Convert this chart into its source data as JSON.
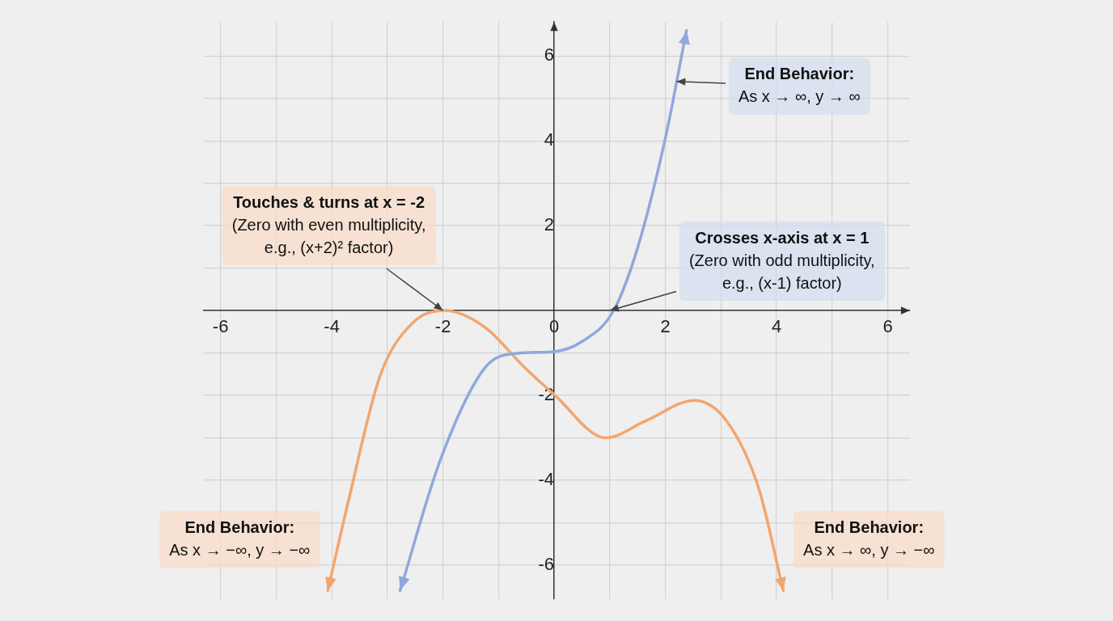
{
  "chart_data": {
    "type": "line",
    "xlim": [
      -6.3,
      6.4
    ],
    "ylim": [
      -6.8,
      6.8
    ],
    "xticks": [
      -6,
      {
        "value": -5,
        "label": null
      },
      -4,
      {
        "value": -3,
        "label": null
      },
      -2,
      {
        "value": -1,
        "label": null
      },
      0,
      {
        "value": 1,
        "label": null
      },
      2,
      {
        "value": 3,
        "label": null
      },
      4,
      {
        "value": 5,
        "label": null
      },
      6
    ],
    "yticks": [
      -6,
      {
        "value": -5,
        "label": null
      },
      -4,
      {
        "value": -3,
        "label": null
      },
      -2,
      {
        "value": -1,
        "label": null
      },
      {
        "value": 0,
        "label": null
      },
      {
        "value": 1,
        "label": null
      },
      2,
      {
        "value": 3,
        "label": null
      },
      4,
      {
        "value": 5,
        "label": null
      },
      6
    ],
    "grid": true,
    "legend": false,
    "marker": "none",
    "line_style": "solid",
    "series": [
      {
        "color": "#8fa8dc",
        "x": [
          -2.77,
          -2.04,
          -1.25,
          -0.67,
          0,
          0.49,
          1.07,
          1.5,
          2.01,
          2.38
        ],
        "values": [
          -6.6,
          -3.5,
          -1.36,
          -1.01,
          -0.97,
          -0.74,
          0,
          1.47,
          4.12,
          6.6
        ]
      },
      {
        "color": "#f2a66e",
        "x": [
          -4.07,
          -3.71,
          -3.13,
          -2.55,
          -1.97,
          -1.25,
          -0.52,
          0,
          0.93,
          1.65,
          2.52,
          3.1,
          3.68,
          4.12
        ],
        "values": [
          -6.6,
          -4.55,
          -1.54,
          -0.3,
          0,
          -0.39,
          -1.36,
          -1.98,
          -3.0,
          -2.6,
          -2.12,
          -2.6,
          -4.19,
          -6.6
        ]
      }
    ],
    "annotations": [
      {
        "text": "Touches & turns at x = -2\n(Zero with even multiplicity,\ne.g., (x+2)² factor)",
        "x": -2,
        "y": 0
      },
      {
        "text": "Crosses x-axis at x = 1\n(Zero with odd multiplicity,\ne.g., (x-1) factor)",
        "x": 1,
        "y": 0
      },
      {
        "text": "End Behavior:\nAs x → ∞, y → ∞",
        "x": 2.2,
        "y": 5.4
      },
      {
        "text": "End Behavior:\nAs x → −∞, y → −∞",
        "x": -4.07,
        "y": -6.6
      },
      {
        "text": "End Behavior:\nAs x → ∞, y → −∞",
        "x": 4.12,
        "y": -6.6
      }
    ]
  }
}
